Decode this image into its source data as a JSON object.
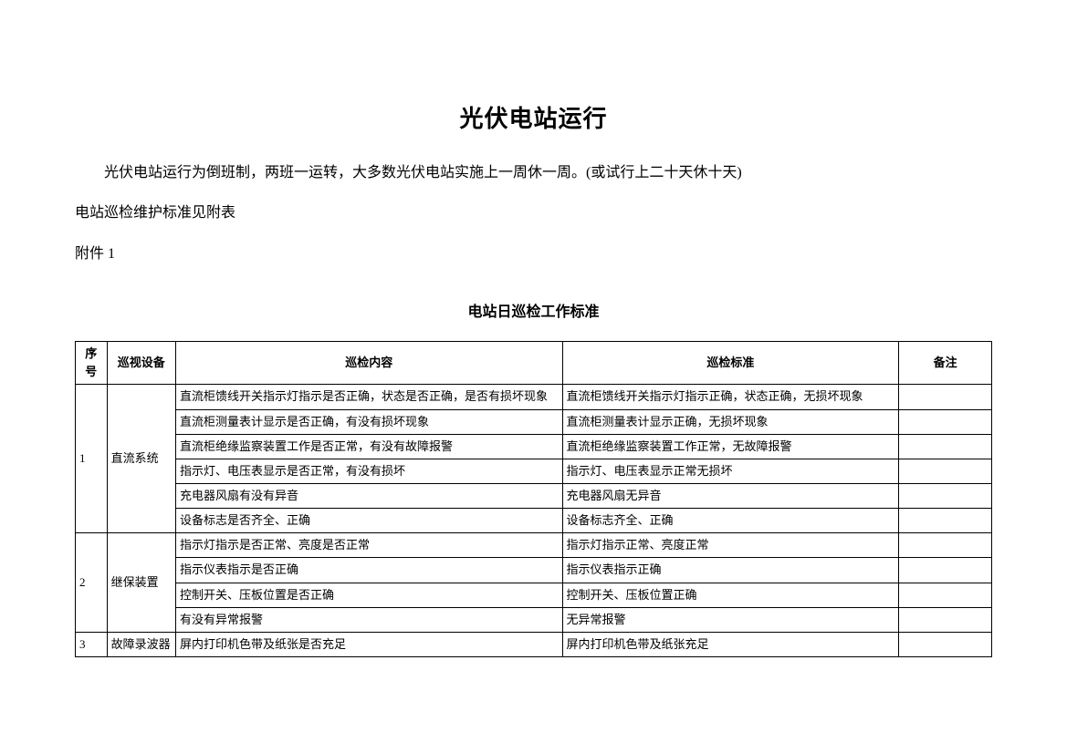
{
  "title": "光伏电站运行",
  "paragraph1": "光伏电站运行为倒班制，两班一运转，大多数光伏电站实施上一周休一周。(或试行上二十天休十天)",
  "paragraph2": "电站巡检维护标准见附表",
  "paragraph3": "附件 1",
  "subtitle": "电站日巡检工作标准",
  "table": {
    "headers": {
      "seq": "序号",
      "device": "巡视设备",
      "content": "巡检内容",
      "standard": "巡检标准",
      "note": "备注"
    },
    "groups": [
      {
        "seq": "1",
        "device": "直流系统",
        "rows": [
          {
            "content": "直流柜馈线开关指示灯指示是否正确，状态是否正确，是否有损坏现象",
            "standard": "直流柜馈线开关指示灯指示正确，状态正确，无损坏现象",
            "note": ""
          },
          {
            "content": "直流柜测量表计显示是否正确，有没有损坏现象",
            "standard": "直流柜测量表计显示正确，无损坏现象",
            "note": ""
          },
          {
            "content": "直流柜绝缘监察装置工作是否正常，有没有故障报警",
            "standard": "直流柜绝缘监察装置工作正常，无故障报警",
            "note": ""
          },
          {
            "content": "指示灯、电压表显示是否正常，有没有损坏",
            "standard": "指示灯、电压表显示正常无损坏",
            "note": ""
          },
          {
            "content": "充电器风扇有没有异音",
            "standard": "充电器风扇无异音",
            "note": ""
          },
          {
            "content": "设备标志是否齐全、正确",
            "standard": "设备标志齐全、正确",
            "note": ""
          }
        ]
      },
      {
        "seq": "2",
        "device": "继保装置",
        "rows": [
          {
            "content": "指示灯指示是否正常、亮度是否正常",
            "standard": "指示灯指示正常、亮度正常",
            "note": ""
          },
          {
            "content": "指示仪表指示是否正确",
            "standard": "指示仪表指示正确",
            "note": ""
          },
          {
            "content": "控制开关、压板位置是否正确",
            "standard": "控制开关、压板位置正确",
            "note": ""
          },
          {
            "content": "有没有异常报警",
            "standard": "无异常报警",
            "note": ""
          }
        ]
      },
      {
        "seq": "3",
        "device": "故障录波器",
        "rows": [
          {
            "content": "屏内打印机色带及纸张是否充足",
            "standard": "屏内打印机色带及纸张充足",
            "note": ""
          }
        ]
      }
    ]
  }
}
